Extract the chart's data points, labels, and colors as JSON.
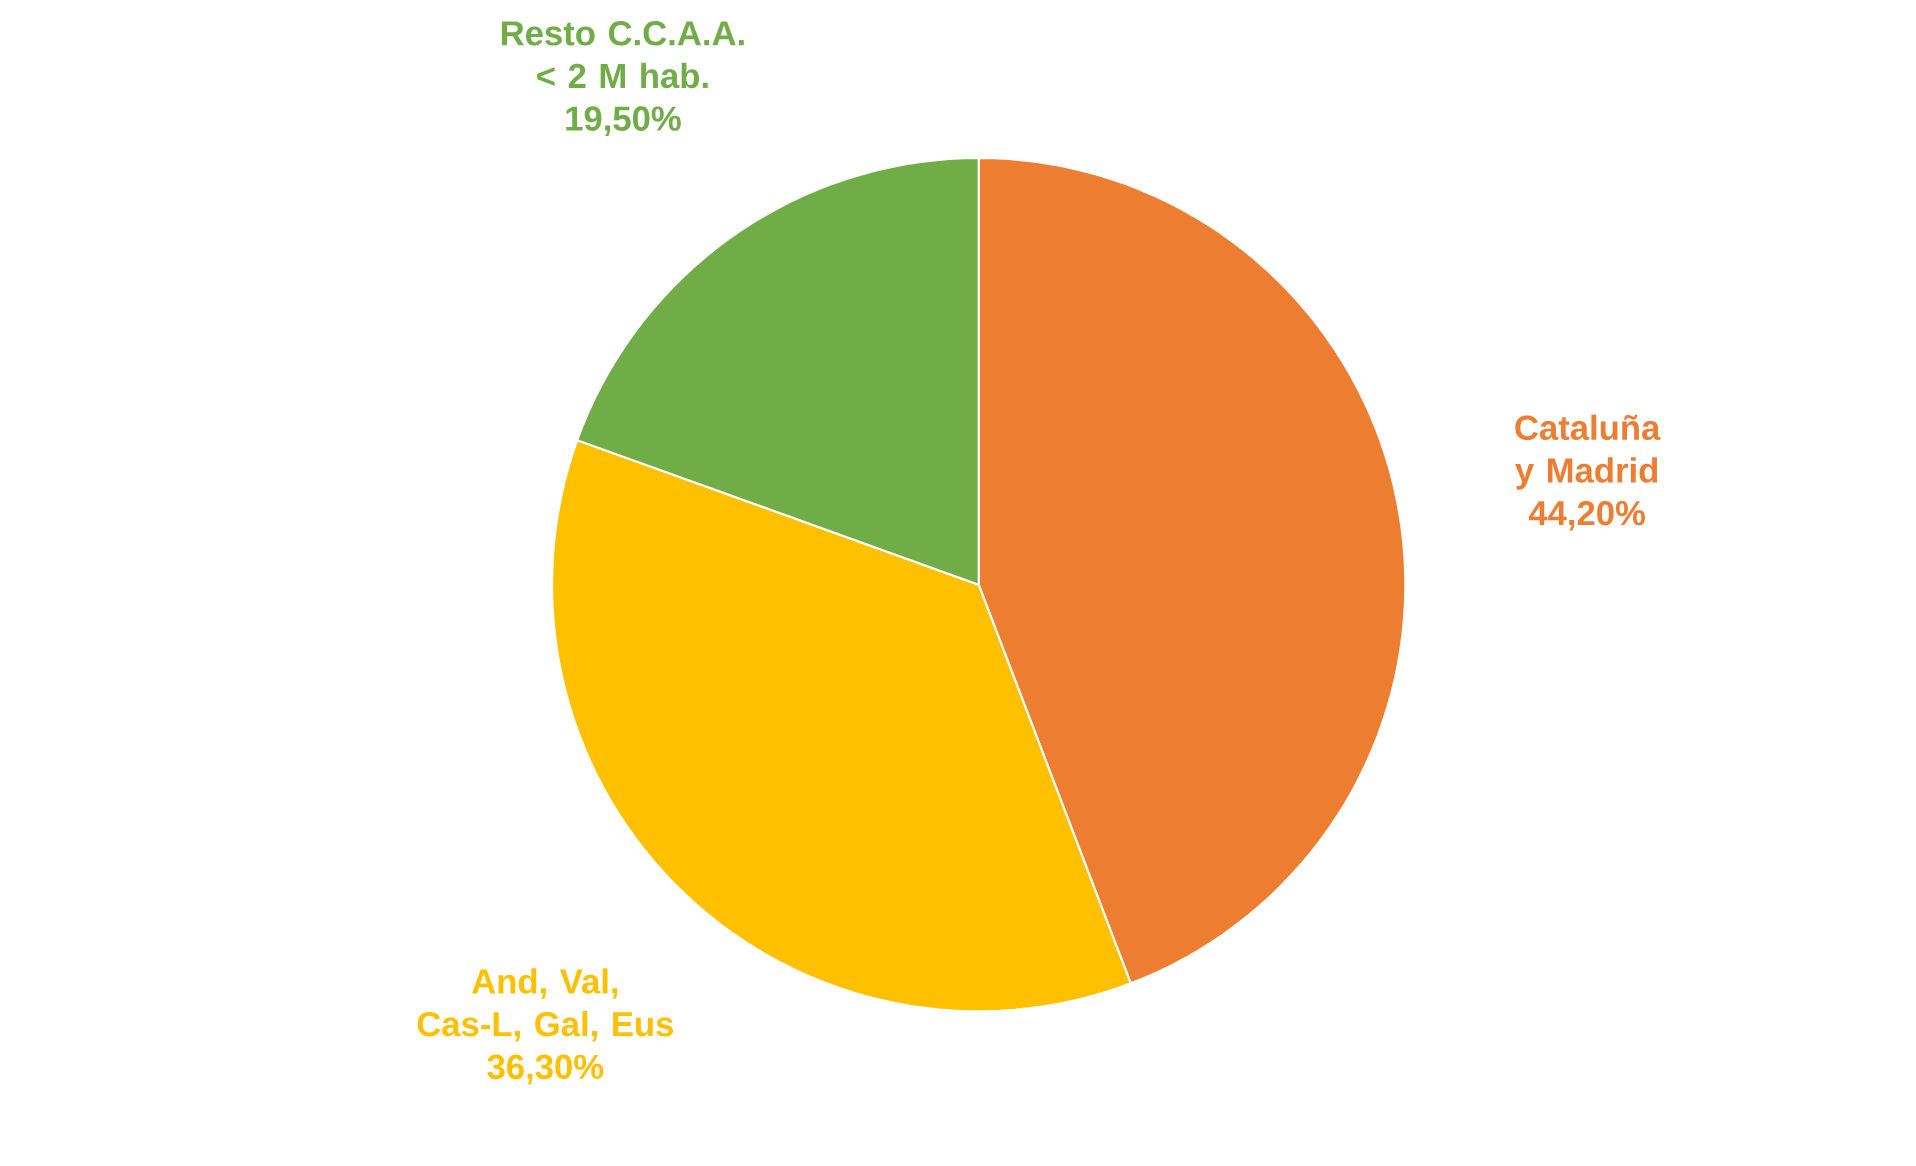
{
  "chart_data": {
    "type": "pie",
    "categories": [
      "Cataluña y Madrid",
      "And, Val, Cas-L, Gal, Eus",
      "Resto C.C.A.A. < 2 M hab."
    ],
    "values": [
      44.2,
      36.3,
      19.5
    ],
    "value_labels": [
      "44,20%",
      "36,30%",
      "19,50%"
    ],
    "colors": [
      "#ed7d31",
      "#ffc000",
      "#70ad47"
    ]
  }
}
